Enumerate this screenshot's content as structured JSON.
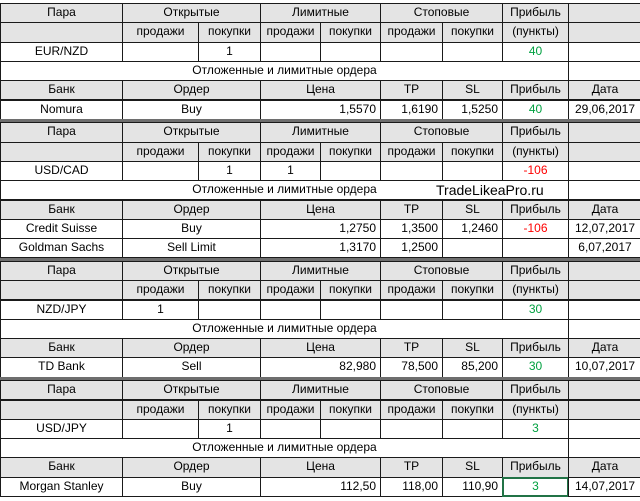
{
  "blocks": [
    {
      "pair_header": [
        "Пара",
        "Открытые",
        "Лимитные",
        "Стоповые",
        "Прибыль"
      ],
      "pair_subheader": [
        "продажи",
        "покупки",
        "продажи",
        "покупки",
        "продажи",
        "покупки",
        "(пункты)"
      ],
      "pair_row": [
        "EUR/NZD",
        null,
        1,
        null,
        null,
        null,
        null,
        40
      ],
      "section": "Отложенные и лимитные ордера",
      "order_header": [
        "Банк",
        "Ордер",
        "Цена",
        "TP",
        "SL",
        "Прибыль",
        "Дата"
      ],
      "orders": [
        [
          "Nomura",
          "Buy",
          "1,5570",
          "1,6190",
          "1,5250",
          40,
          "29,06,2017"
        ]
      ]
    },
    {
      "pair_header": [
        "Пара",
        "Открытые",
        "Лимитные",
        "Стоповые",
        "Прибыль"
      ],
      "pair_subheader": [
        "продажи",
        "покупки",
        "продажи",
        "покупки",
        "продажи",
        "покупки",
        "(пункты)"
      ],
      "pair_row": [
        "USD/CAD",
        null,
        1,
        1,
        null,
        null,
        null,
        -106
      ],
      "section": "Отложенные и лимитные ордера",
      "watermark": "TradeLikeaPro.ru",
      "order_header": [
        "Банк",
        "Ордер",
        "Цена",
        "TP",
        "SL",
        "Прибыль",
        "Дата"
      ],
      "orders": [
        [
          "Credit Suisse",
          "Buy",
          "1,2750",
          "1,3500",
          "1,2460",
          -106,
          "12,07,2017"
        ],
        [
          "Goldman Sachs",
          "Sell Limit",
          "1,3170",
          "1,2500",
          null,
          null,
          "6,07,2017"
        ]
      ]
    },
    {
      "pair_header": [
        "Пара",
        "Открытые",
        "Лимитные",
        "Стоповые",
        "Прибыль"
      ],
      "pair_subheader": [
        "продажи",
        "покупки",
        "продажи",
        "покупки",
        "продажи",
        "покупки",
        "(пункты)"
      ],
      "pair_row": [
        "NZD/JPY",
        1,
        null,
        null,
        null,
        null,
        null,
        30
      ],
      "section": "Отложенные и лимитные ордера",
      "order_header": [
        "Банк",
        "Ордер",
        "Цена",
        "TP",
        "SL",
        "Прибыль",
        "Дата"
      ],
      "orders": [
        [
          "TD Bank",
          "Sell",
          "82,980",
          "78,500",
          "85,200",
          30,
          "10,07,2017"
        ]
      ]
    },
    {
      "pair_header": [
        "Пара",
        "Открытые",
        "Лимитные",
        "Стоповые",
        "Прибыль"
      ],
      "pair_subheader": [
        "продажи",
        "покупки",
        "продажи",
        "покупки",
        "продажи",
        "покупки",
        "(пункты)"
      ],
      "pair_row": [
        "USD/JPY",
        null,
        1,
        null,
        null,
        null,
        null,
        3
      ],
      "section": "Отложенные и лимитные ордера",
      "order_header": [
        "Банк",
        "Ордер",
        "Цена",
        "TP",
        "SL",
        "Прибыль",
        "Дата"
      ],
      "orders": [
        [
          "Morgan Stanley",
          "Buy",
          "112,50",
          "118,00",
          "110,90",
          3,
          "14,07,2017"
        ]
      ]
    }
  ]
}
